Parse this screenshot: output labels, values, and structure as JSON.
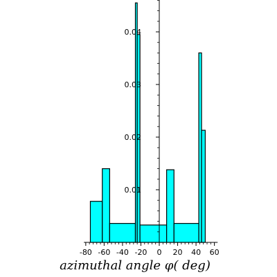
{
  "chart_data": {
    "type": "histogram",
    "title": "",
    "xlabel": "azimuthal angle φ( deg)",
    "ylabel": "",
    "xlim": [
      -82,
      62
    ],
    "ylim": [
      0,
      0.046
    ],
    "x_ticks": [
      -80,
      -60,
      -40,
      -20,
      0,
      20,
      40,
      60
    ],
    "x_tick_labels": [
      "-80",
      "-60",
      "-40",
      "-20",
      "0",
      "20",
      "40",
      "60"
    ],
    "y_ticks": [
      0.01,
      0.02,
      0.03,
      0.04
    ],
    "y_tick_labels": [
      "0.01",
      "0.02",
      "0.03",
      "0.04"
    ],
    "bar_color": "#00ffff",
    "edge_color": "#000000",
    "bins": [
      {
        "x0": -75,
        "x1": -62,
        "value": 0.0078
      },
      {
        "x0": -62,
        "x1": -54,
        "value": 0.014
      },
      {
        "x0": -54,
        "x1": -26,
        "value": 0.0036
      },
      {
        "x0": -26,
        "x1": -24,
        "value": 0.0455
      },
      {
        "x0": -24,
        "x1": -21,
        "value": 0.0395
      },
      {
        "x0": -21,
        "x1": 8,
        "value": 0.0033
      },
      {
        "x0": 8,
        "x1": 16,
        "value": 0.0138
      },
      {
        "x0": 16,
        "x1": 43,
        "value": 0.0036
      },
      {
        "x0": 43,
        "x1": 46,
        "value": 0.036
      },
      {
        "x0": 46,
        "x1": 50,
        "value": 0.0213
      }
    ],
    "grid": false,
    "legend": "none"
  }
}
